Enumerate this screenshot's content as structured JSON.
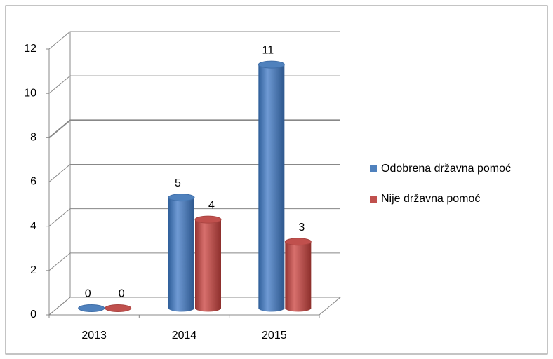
{
  "chart_data": {
    "type": "bar3d",
    "categories": [
      "2013",
      "2014",
      "2015"
    ],
    "series": [
      {
        "name": "Odobrena državna pomoć",
        "color": "#4f81bd",
        "values": [
          0,
          5,
          11
        ]
      },
      {
        "name": "Nije državna pomoć",
        "color": "#c0504d",
        "values": [
          0,
          4,
          3
        ]
      }
    ],
    "ylim": [
      0,
      12
    ],
    "yticks": [
      0,
      2,
      4,
      6,
      8,
      10,
      12
    ],
    "grid": true,
    "legend": "right"
  }
}
